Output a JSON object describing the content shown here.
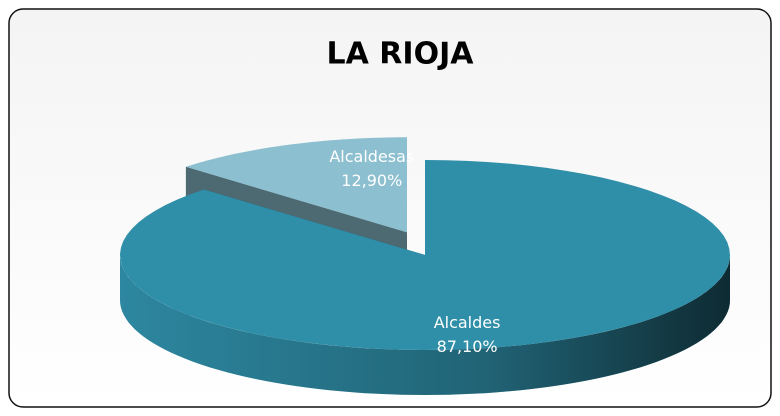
{
  "chart_data": {
    "type": "pie",
    "title": "LA RIOJA",
    "categories": [
      "Alcaldes",
      "Alcaldesas"
    ],
    "values": [
      87.1,
      12.9
    ],
    "value_labels": [
      "87,10%",
      "12,90%"
    ],
    "colors": [
      "#2f8ea8",
      "#8cbfcf"
    ]
  }
}
